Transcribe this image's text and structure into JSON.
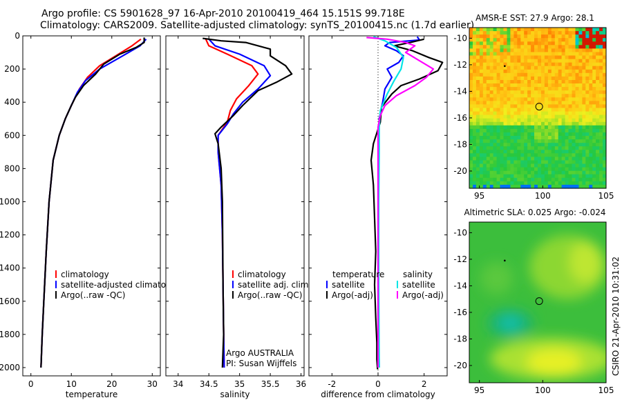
{
  "header": {
    "line1": "Argo profile: CS 5901628_97 16-Apr-2010 20100419_464 15.151S 99.718E",
    "line2": "Climatology: CARS2009. Satellite-adjusted climatology: synTS_20100415.nc (1.7d earlier)"
  },
  "side_label": "CSIRO 21-Apr-2010 10:31:02",
  "colors": {
    "climatology": "#ff0000",
    "satellite": "#0000ff",
    "argo": "#000000",
    "salinity_satellite": "#00e5e5",
    "salinity_argo": "#ff00ff"
  },
  "chart_data": [
    {
      "id": "temperature",
      "type": "line",
      "xlabel": "temperature",
      "xlim": [
        -2,
        32
      ],
      "xticks": [
        0,
        10,
        20,
        30
      ],
      "ylim": [
        2050,
        0
      ],
      "yticks": [
        0,
        200,
        400,
        600,
        800,
        1000,
        1200,
        1400,
        1600,
        1800,
        2000
      ],
      "legend": [
        "climatology",
        "satellite-adjusted climatology",
        "Argo(..raw -QC)"
      ],
      "legend_colors": [
        "#ff0000",
        "#0000ff",
        "#000000"
      ],
      "series": [
        {
          "name": "climatology",
          "color": "#ff0000",
          "points": [
            [
              27.2,
              20
            ],
            [
              25,
              60
            ],
            [
              21,
              120
            ],
            [
              17,
              180
            ],
            [
              14,
              250
            ],
            [
              12,
              320
            ],
            [
              10,
              420
            ],
            [
              8.5,
              500
            ],
            [
              7,
              600
            ],
            [
              5.5,
              750
            ],
            [
              4.5,
              1000
            ],
            [
              3.8,
              1300
            ],
            [
              3.2,
              1600
            ],
            [
              2.8,
              1800
            ],
            [
              2.5,
              2000
            ]
          ]
        },
        {
          "name": "satellite-adjusted climatology",
          "color": "#0000ff",
          "points": [
            [
              28.5,
              20
            ],
            [
              27,
              60
            ],
            [
              22,
              130
            ],
            [
              17,
              200
            ],
            [
              13.5,
              270
            ],
            [
              11.5,
              340
            ],
            [
              10,
              420
            ],
            [
              8.5,
              500
            ],
            [
              7,
              600
            ],
            [
              5.5,
              750
            ],
            [
              4.5,
              1000
            ],
            [
              3.8,
              1300
            ],
            [
              3.2,
              1600
            ],
            [
              2.8,
              1800
            ],
            [
              2.5,
              2000
            ]
          ]
        },
        {
          "name": "Argo(..raw -QC)",
          "color": "#000000",
          "points": [
            [
              28,
              10
            ],
            [
              28,
              40
            ],
            [
              26,
              70
            ],
            [
              22,
              110
            ],
            [
              18,
              170
            ],
            [
              16,
              230
            ],
            [
              13,
              300
            ],
            [
              11,
              370
            ],
            [
              10,
              420
            ],
            [
              8.5,
              500
            ],
            [
              7,
              600
            ],
            [
              5.5,
              750
            ],
            [
              4.5,
              1000
            ],
            [
              3.8,
              1300
            ],
            [
              3.2,
              1600
            ],
            [
              2.8,
              1800
            ],
            [
              2.5,
              2000
            ]
          ]
        }
      ]
    },
    {
      "id": "salinity",
      "type": "line",
      "xlabel": "salinity",
      "xlim": [
        33.8,
        36.05
      ],
      "xticks": [
        34,
        34.5,
        35,
        35.5,
        36
      ],
      "ylim": [
        2050,
        0
      ],
      "legend": [
        "climatology",
        "satellite adj. clim.",
        "Argo(..raw -QC)"
      ],
      "legend_colors": [
        "#ff0000",
        "#0000ff",
        "#000000"
      ],
      "annotation": [
        "Argo AUSTRALIA",
        "PI: Susan Wijffels"
      ],
      "series": [
        {
          "name": "climatology",
          "color": "#ff0000",
          "points": [
            [
              34.45,
              20
            ],
            [
              34.5,
              60
            ],
            [
              34.8,
              110
            ],
            [
              35.2,
              180
            ],
            [
              35.3,
              230
            ],
            [
              35.15,
              300
            ],
            [
              34.95,
              380
            ],
            [
              34.85,
              450
            ],
            [
              34.8,
              520
            ],
            [
              34.65,
              600
            ],
            [
              34.65,
              700
            ],
            [
              34.7,
              900
            ],
            [
              34.72,
              1200
            ],
            [
              34.73,
              1500
            ],
            [
              34.74,
              1800
            ],
            [
              34.75,
              2000
            ]
          ]
        },
        {
          "name": "satellite adj. clim.",
          "color": "#0000ff",
          "points": [
            [
              34.5,
              20
            ],
            [
              34.6,
              60
            ],
            [
              35.0,
              110
            ],
            [
              35.4,
              180
            ],
            [
              35.5,
              240
            ],
            [
              35.3,
              320
            ],
            [
              35.05,
              400
            ],
            [
              34.9,
              470
            ],
            [
              34.8,
              530
            ],
            [
              34.65,
              600
            ],
            [
              34.65,
              700
            ],
            [
              34.7,
              900
            ],
            [
              34.72,
              1200
            ],
            [
              34.73,
              1500
            ],
            [
              34.74,
              1800
            ],
            [
              34.75,
              2000
            ]
          ]
        },
        {
          "name": "Argo(..raw -QC)",
          "color": "#000000",
          "points": [
            [
              34.4,
              15
            ],
            [
              34.7,
              30
            ],
            [
              35.1,
              40
            ],
            [
              35.5,
              80
            ],
            [
              35.5,
              120
            ],
            [
              35.75,
              180
            ],
            [
              35.85,
              230
            ],
            [
              35.6,
              280
            ],
            [
              35.3,
              330
            ],
            [
              35.05,
              420
            ],
            [
              34.9,
              480
            ],
            [
              34.7,
              550
            ],
            [
              34.6,
              590
            ],
            [
              34.65,
              650
            ],
            [
              34.7,
              800
            ],
            [
              34.72,
              1000
            ],
            [
              34.73,
              1500
            ],
            [
              34.74,
              1800
            ],
            [
              34.72,
              2000
            ]
          ]
        }
      ]
    },
    {
      "id": "difference",
      "type": "line",
      "xlabel": "difference from climatology",
      "xlim": [
        -3,
        3
      ],
      "xticks": [
        -2,
        0,
        2
      ],
      "ylim": [
        2050,
        0
      ],
      "legend_left": [
        "temperature",
        "satellite",
        "Argo(-adj)"
      ],
      "legend_left_colors": [
        "#000000",
        "#0000ff",
        "#000000"
      ],
      "legend_right": [
        "salinity",
        "satellite",
        "Argo(-adj)"
      ],
      "legend_right_colors": [
        "#000000",
        "#00e5e5",
        "#ff00ff"
      ],
      "series": [
        {
          "name": "temperature satellite",
          "color": "#0000ff",
          "points": [
            [
              1.7,
              5
            ],
            [
              1.8,
              25
            ],
            [
              0.5,
              40
            ],
            [
              0.3,
              60
            ],
            [
              0.8,
              90
            ],
            [
              1.1,
              120
            ],
            [
              0.9,
              160
            ],
            [
              0.4,
              200
            ],
            [
              0.6,
              250
            ],
            [
              0.3,
              320
            ],
            [
              0.2,
              400
            ],
            [
              0.05,
              500
            ],
            [
              0.03,
              600
            ],
            [
              0.02,
              800
            ],
            [
              0.01,
              1000
            ],
            [
              0.02,
              1300
            ],
            [
              0.01,
              1600
            ],
            [
              0.02,
              1800
            ],
            [
              0.05,
              2000
            ]
          ]
        },
        {
          "name": "temperature Argo(-adj)",
          "color": "#000000",
          "points": [
            [
              2.0,
              20
            ],
            [
              1.4,
              40
            ],
            [
              0.7,
              60
            ],
            [
              1.5,
              90
            ],
            [
              2.2,
              130
            ],
            [
              2.8,
              160
            ],
            [
              2.6,
              210
            ],
            [
              1.8,
              260
            ],
            [
              1.0,
              300
            ],
            [
              0.6,
              350
            ],
            [
              0.15,
              430
            ],
            [
              0.1,
              520
            ],
            [
              -0.2,
              650
            ],
            [
              -0.3,
              750
            ],
            [
              -0.2,
              900
            ],
            [
              -0.15,
              1100
            ],
            [
              -0.1,
              1300
            ],
            [
              -0.15,
              1500
            ],
            [
              -0.1,
              1700
            ],
            [
              -0.05,
              1850
            ],
            [
              -0.05,
              1950
            ],
            [
              -0.02,
              2010
            ]
          ]
        },
        {
          "name": "salinity satellite",
          "color": "#00e5e5",
          "points": [
            [
              -0.2,
              5
            ],
            [
              0.3,
              30
            ],
            [
              0.8,
              70
            ],
            [
              1.1,
              130
            ],
            [
              1.0,
              200
            ],
            [
              0.7,
              270
            ],
            [
              0.4,
              350
            ],
            [
              0.1,
              450
            ],
            [
              0.05,
              550
            ],
            [
              0.05,
              700
            ],
            [
              0.03,
              1000
            ],
            [
              0.03,
              1500
            ],
            [
              0.05,
              2000
            ]
          ]
        },
        {
          "name": "salinity Argo(-adj)",
          "color": "#ff00ff",
          "points": [
            [
              -0.5,
              10
            ],
            [
              0.4,
              20
            ],
            [
              1.2,
              40
            ],
            [
              1.6,
              60
            ],
            [
              1.2,
              100
            ],
            [
              1.8,
              150
            ],
            [
              2.4,
              200
            ],
            [
              2.1,
              250
            ],
            [
              1.6,
              300
            ],
            [
              0.8,
              360
            ],
            [
              0.3,
              420
            ],
            [
              0.1,
              480
            ],
            [
              0.0,
              550
            ],
            [
              0.0,
              700
            ],
            [
              0.0,
              1000
            ],
            [
              0.0,
              1500
            ],
            [
              0.0,
              2000
            ]
          ]
        }
      ]
    },
    {
      "id": "sst_map",
      "type": "heatmap",
      "title": "AMSR-E SST: 27.9 Argo: 28.1",
      "xlim": [
        94.2,
        105
      ],
      "ylim": [
        -21.3,
        -9.2
      ],
      "xticks": [
        95,
        100,
        105
      ],
      "yticks": [
        -10,
        -12,
        -14,
        -16,
        -18,
        -20
      ],
      "argo_position": [
        99.718,
        -15.151
      ],
      "dot_position": [
        97.0,
        -12.1
      ]
    },
    {
      "id": "sla_map",
      "type": "heatmap",
      "title": "Altimetric SLA: 0.025 Argo: -0.024",
      "xlim": [
        94.2,
        105
      ],
      "ylim": [
        -21.3,
        -9.2
      ],
      "xticks": [
        95,
        100,
        105
      ],
      "yticks": [
        -10,
        -12,
        -14,
        -16,
        -18,
        -20
      ],
      "argo_position": [
        99.718,
        -15.151
      ],
      "dot_position": [
        97.0,
        -12.1
      ]
    }
  ]
}
